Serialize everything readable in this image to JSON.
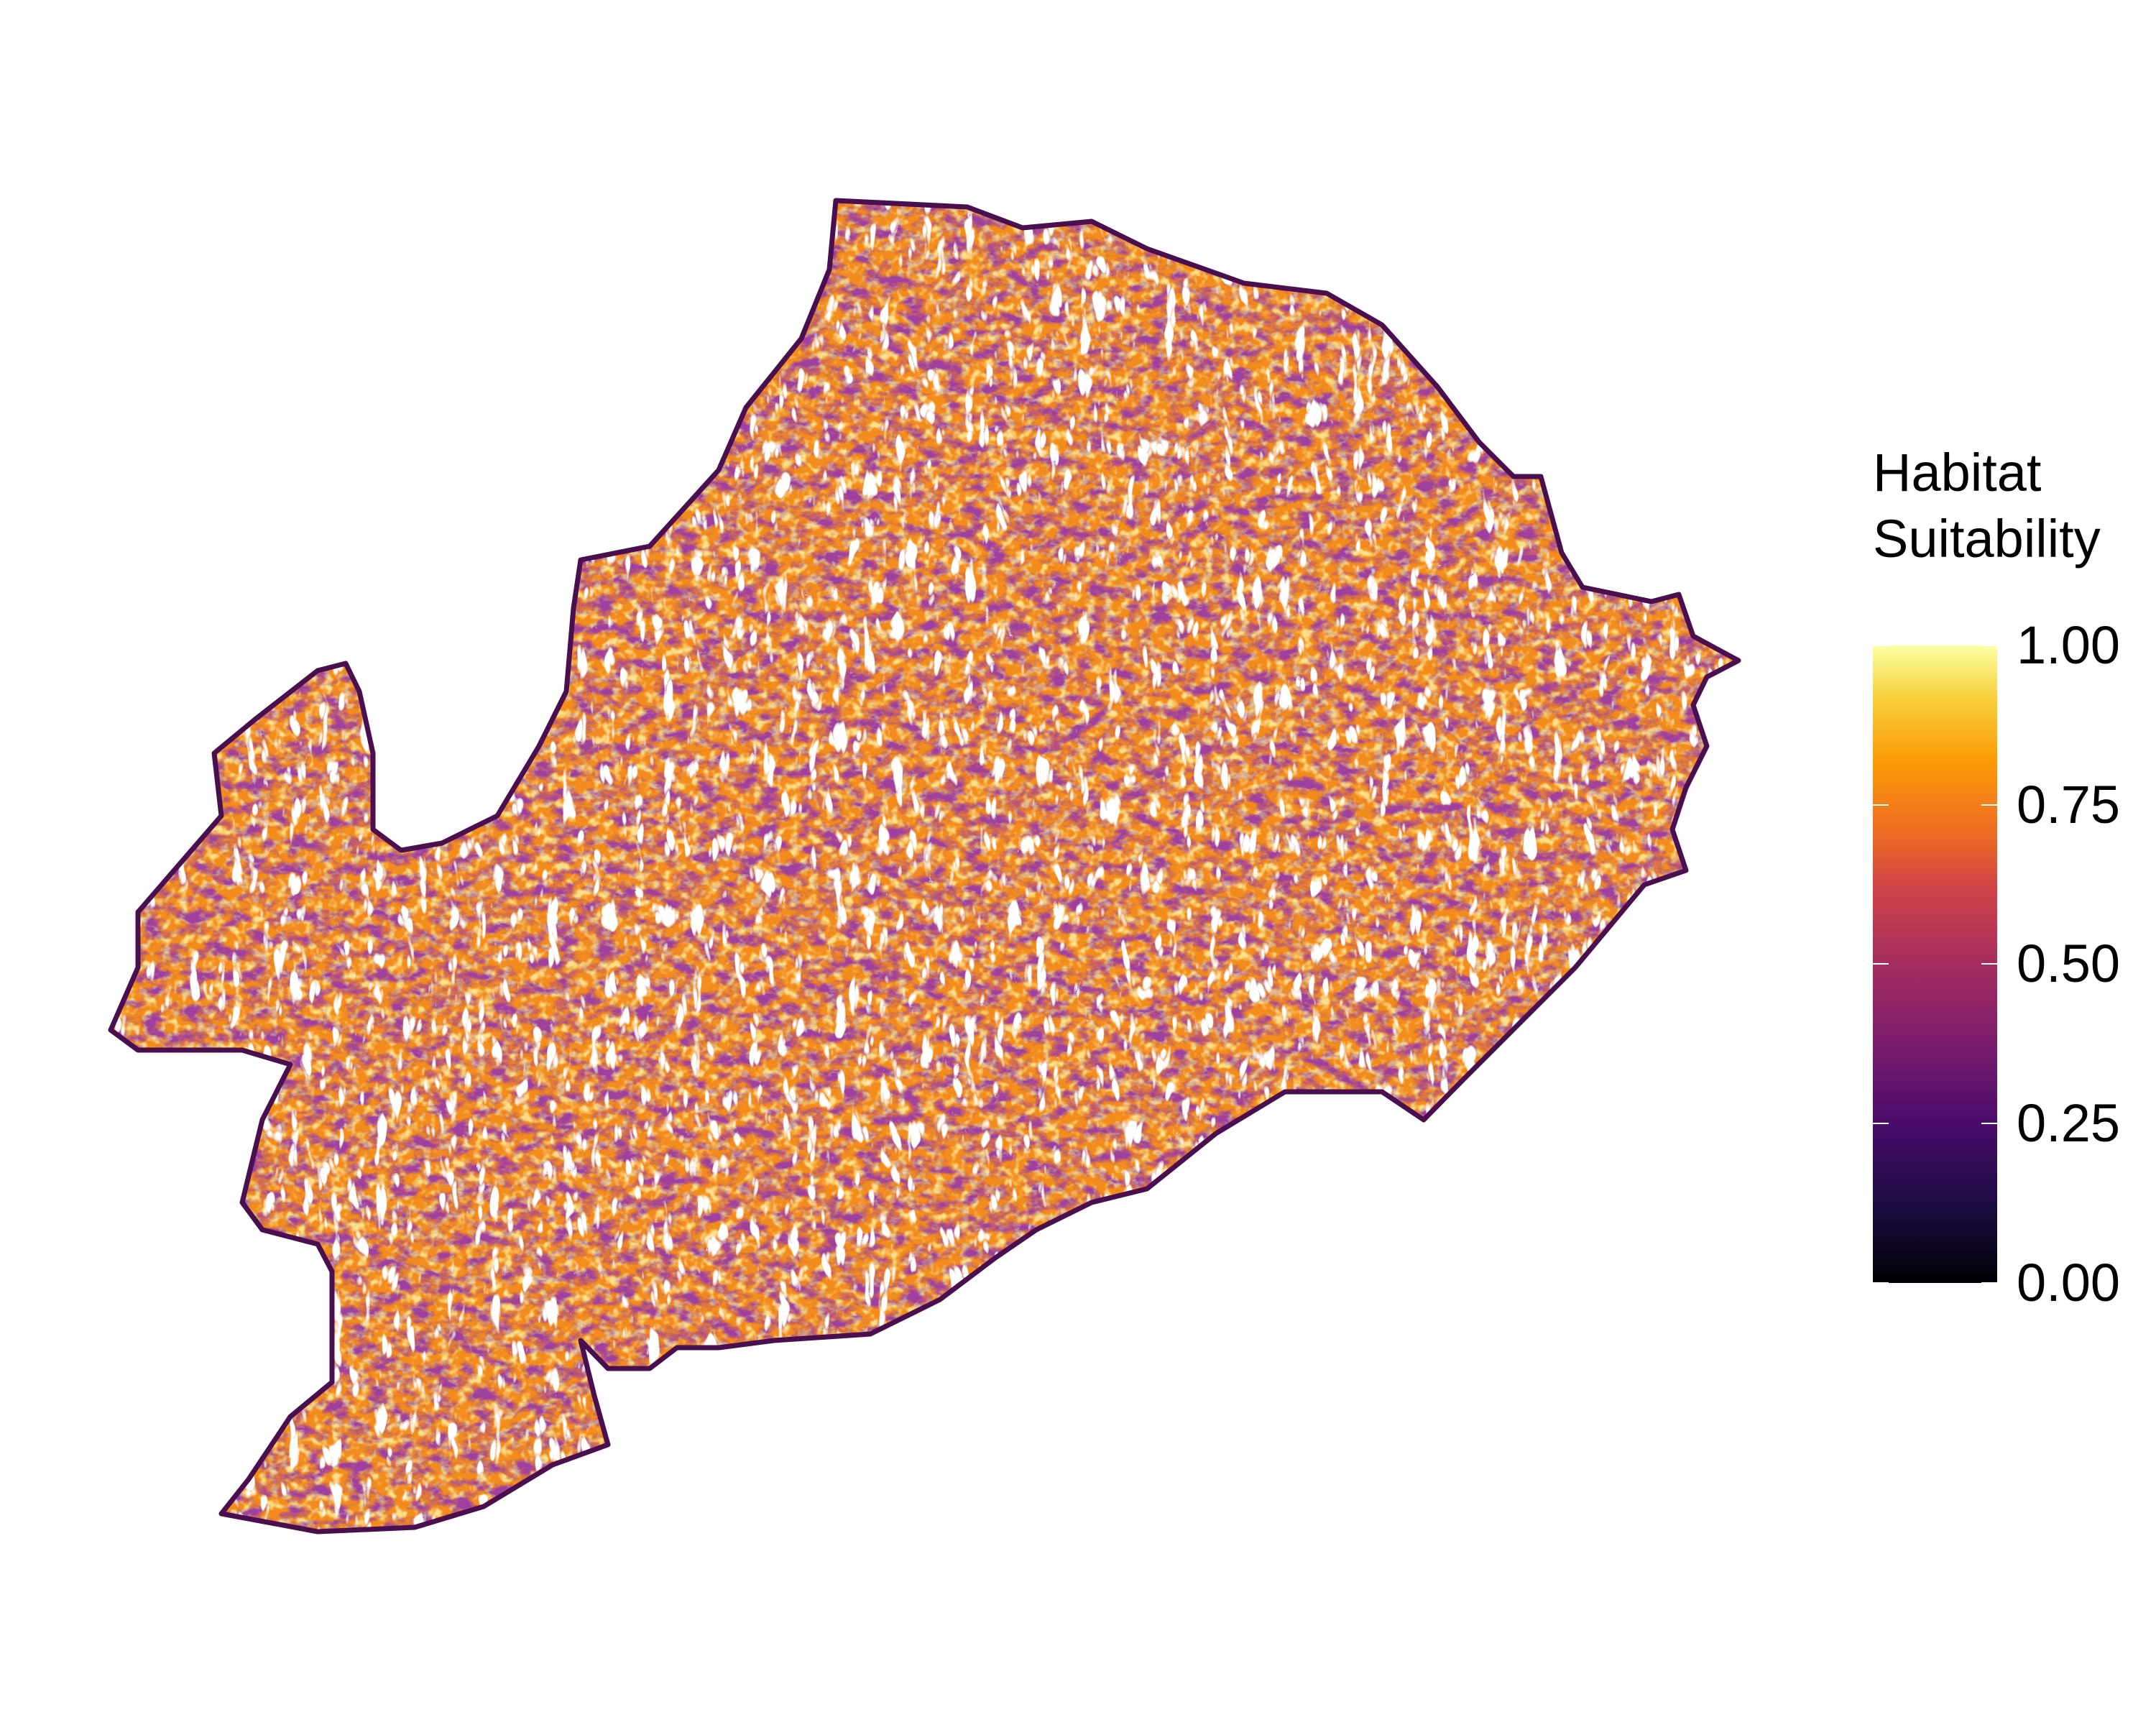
{
  "legend": {
    "title_line1": "Habitat",
    "title_line2": "Suitability",
    "labels": [
      "1.00",
      "0.75",
      "0.50",
      "0.25",
      "0.00"
    ],
    "scale": "inferno",
    "range": [
      0,
      1
    ],
    "colors": [
      "#000004",
      "#4a0c6b",
      "#a52c60",
      "#ed6925",
      "#fb9b06",
      "#fcffa4"
    ]
  },
  "map": {
    "boundary_color": "#4a0f4f",
    "dominant_fill": "#f28c1c",
    "no_data_color": "#ffffff"
  }
}
